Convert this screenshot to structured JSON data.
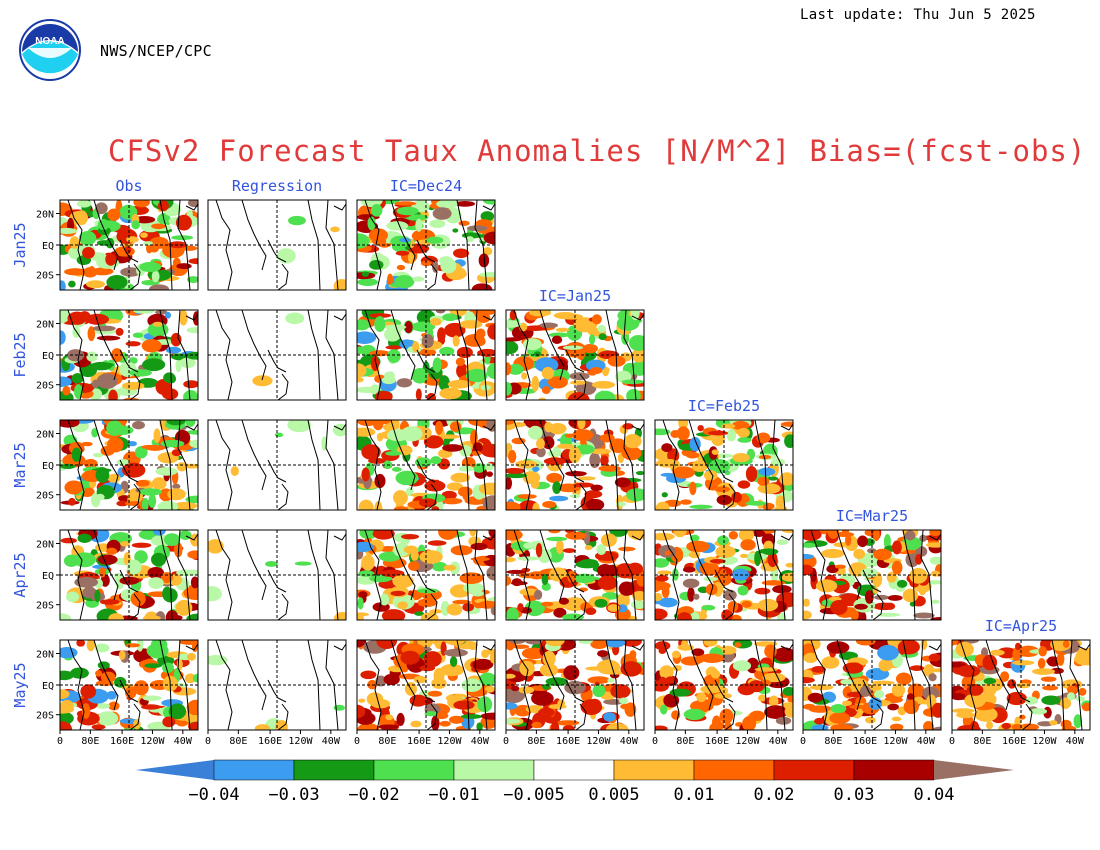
{
  "header": {
    "last_update": "Last update: Thu Jun 5 2025",
    "agency": "NWS/NCEP/CPC",
    "logo_text": "NOAA"
  },
  "chart_data": {
    "type": "heatmap",
    "title": "CFSv2 Forecast Taux Anomalies [N/M^2] Bias=(fcst-obs)",
    "column_headers": [
      "Obs",
      "Regression",
      "IC=Dec24",
      "IC=Jan25",
      "IC=Feb25",
      "IC=Mar25",
      "IC=Apr25"
    ],
    "row_labels": [
      "Jan25",
      "Feb25",
      "Mar25",
      "Apr25",
      "May25"
    ],
    "lat_ticks": [
      "20N",
      "EQ",
      "20S"
    ],
    "lon_ticks": [
      "0",
      "80E",
      "160E",
      "120W",
      "40W"
    ],
    "colorbar": {
      "tick_labels": [
        "-0.04",
        "-0.03",
        "-0.02",
        "-0.01",
        "-0.005",
        "0.005",
        "0.01",
        "0.02",
        "0.03",
        "0.04"
      ],
      "colors": [
        "#3a7fd8",
        "#3c9cf0",
        "#149a14",
        "#4fe04f",
        "#b8f8a6",
        "#ffffff",
        "#ffbb33",
        "#ff6600",
        "#dd1f00",
        "#a80000",
        "#9a7064"
      ]
    },
    "colors": {
      "title": "#e03a3a",
      "labels": "#3355dd"
    }
  }
}
